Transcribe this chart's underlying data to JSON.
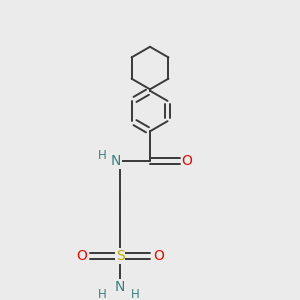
{
  "bg_color": "#ebebeb",
  "bond_color": "#3a3a3a",
  "bond_width": 1.4,
  "atom_colors": {
    "N": "#3a8080",
    "O": "#dd1100",
    "S": "#bbaa00",
    "H": "#3a8080",
    "C": "#3a3a3a"
  },
  "font_size_atom": 10,
  "font_size_H": 8.5,
  "dbo": 0.022
}
